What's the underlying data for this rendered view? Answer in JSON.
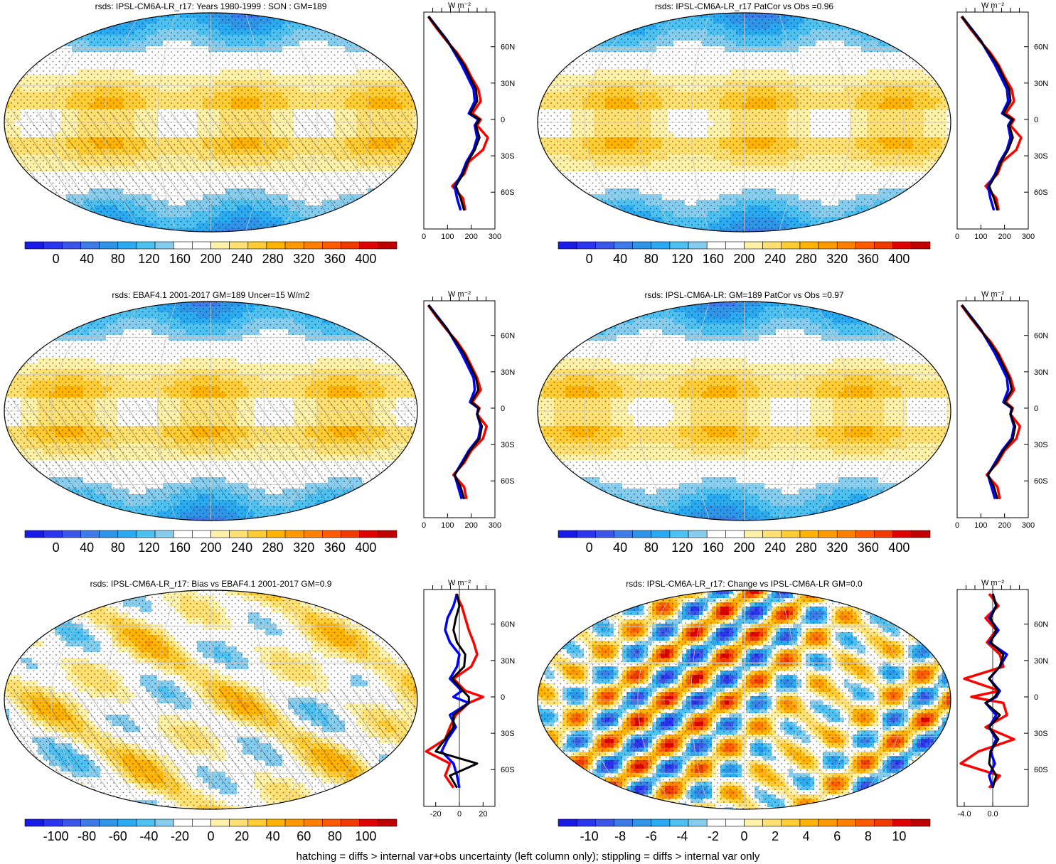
{
  "footer": "hatching = diffs > internal var+obs uncertainty (left column only); stippling = diffs > internal var only",
  "profile_unit": "W m⁻²",
  "lat_labels": [
    "60N",
    "30N",
    "0",
    "30S",
    "60S"
  ],
  "palettes": {
    "absolute": [
      "#1a1ae6",
      "#2b35f0",
      "#3a55e8",
      "#3c7be8",
      "#2f95e8",
      "#2aaaf0",
      "#4dc2f2",
      "#85cdee",
      "#ffffff",
      "#ffffff",
      "#fff2a8",
      "#ffe070",
      "#ffcc33",
      "#ffb300",
      "#ff9900",
      "#ff7f00",
      "#ff5a00",
      "#f03a00",
      "#e00000",
      "#c00000"
    ],
    "diverging": [
      "#1a1ae6",
      "#2b35f0",
      "#3a55e8",
      "#3c7be8",
      "#2f95e8",
      "#2aaaf0",
      "#4dc2f2",
      "#85cdee",
      "#ffffff",
      "#ffffff",
      "#fff2a8",
      "#ffe070",
      "#ffcc33",
      "#ffb300",
      "#ff9900",
      "#ff7f00",
      "#ff5a00",
      "#f03a00",
      "#e00000",
      "#c00000"
    ]
  },
  "colors": {
    "model_line": "#0000ff",
    "obs_line": "#ff0000",
    "ref_line": "#000000"
  },
  "chart_data": [
    {
      "type": "heatmap",
      "title": "rsds: IPSL-CM6A-LR_r17: Years 1980-1999 : SON : GM=189",
      "colorbar_labels": [
        "0",
        "40",
        "80",
        "120",
        "160",
        "200",
        "240",
        "280",
        "320",
        "360",
        "400"
      ],
      "profile": {
        "x_ticks": [
          "0",
          "100",
          "200",
          "300"
        ],
        "xlim": [
          0,
          300
        ],
        "lat": [
          85,
          75,
          65,
          55,
          45,
          35,
          25,
          15,
          5,
          0,
          -5,
          -15,
          -25,
          -35,
          -45,
          -55,
          -65,
          -75
        ],
        "model": [
          20,
          60,
          100,
          130,
          160,
          185,
          210,
          215,
          190,
          230,
          215,
          225,
          210,
          180,
          160,
          130,
          140,
          155
        ],
        "obs": [
          18,
          55,
          95,
          140,
          175,
          200,
          230,
          240,
          205,
          240,
          225,
          270,
          250,
          190,
          170,
          120,
          165,
          175
        ],
        "ref": [
          20,
          58,
          98,
          135,
          170,
          195,
          220,
          225,
          195,
          235,
          220,
          235,
          215,
          185,
          165,
          135,
          155,
          170
        ]
      },
      "hatching": true,
      "stippling": true
    },
    {
      "type": "heatmap",
      "title": "rsds: IPSL-CM6A-LR_r17 PatCor vs Obs =0.96",
      "colorbar_labels": [
        "0",
        "40",
        "80",
        "120",
        "160",
        "200",
        "240",
        "280",
        "320",
        "360",
        "400"
      ],
      "profile": {
        "x_ticks": [
          "0",
          "100",
          "200",
          "300"
        ],
        "xlim": [
          0,
          300
        ],
        "lat": [
          85,
          75,
          65,
          55,
          45,
          35,
          25,
          15,
          5,
          0,
          -5,
          -15,
          -25,
          -35,
          -45,
          -55,
          -65,
          -75
        ],
        "model": [
          20,
          60,
          100,
          130,
          160,
          185,
          210,
          215,
          190,
          230,
          215,
          225,
          210,
          180,
          160,
          130,
          140,
          155
        ],
        "obs": [
          18,
          55,
          95,
          140,
          175,
          200,
          230,
          240,
          205,
          240,
          225,
          270,
          250,
          190,
          170,
          120,
          165,
          175
        ],
        "ref": [
          20,
          58,
          98,
          135,
          170,
          195,
          220,
          225,
          195,
          235,
          220,
          235,
          215,
          185,
          165,
          135,
          155,
          170
        ]
      },
      "hatching": false,
      "stippling": true
    },
    {
      "type": "heatmap",
      "title": "rsds: EBAF4.1 2001-2017 GM=189 Uncer=15 W/m2",
      "colorbar_labels": [
        "0",
        "40",
        "80",
        "120",
        "160",
        "200",
        "240",
        "280",
        "320",
        "360",
        "400"
      ],
      "profile": {
        "x_ticks": [
          "0",
          "100",
          "200",
          "300"
        ],
        "xlim": [
          0,
          300
        ],
        "lat": [
          85,
          75,
          65,
          55,
          45,
          35,
          25,
          15,
          5,
          0,
          -5,
          -15,
          -25,
          -35,
          -45,
          -55,
          -65,
          -75
        ],
        "model": [
          20,
          60,
          100,
          130,
          160,
          185,
          210,
          215,
          195,
          230,
          225,
          240,
          230,
          190,
          160,
          130,
          145,
          160
        ],
        "obs": [
          18,
          55,
          95,
          140,
          175,
          200,
          225,
          240,
          205,
          235,
          225,
          265,
          250,
          200,
          170,
          125,
          170,
          180
        ],
        "ref": [
          20,
          58,
          98,
          135,
          170,
          195,
          220,
          230,
          200,
          232,
          225,
          245,
          235,
          195,
          165,
          130,
          155,
          170
        ]
      },
      "hatching": true,
      "stippling": true
    },
    {
      "type": "heatmap",
      "title": "rsds: IPSL-CM6A-LR: GM=189 PatCor vs Obs =0.97",
      "colorbar_labels": [
        "0",
        "40",
        "80",
        "120",
        "160",
        "200",
        "240",
        "280",
        "320",
        "360",
        "400"
      ],
      "profile": {
        "x_ticks": [
          "0",
          "100",
          "200",
          "300"
        ],
        "xlim": [
          0,
          300
        ],
        "lat": [
          85,
          75,
          65,
          55,
          45,
          35,
          25,
          15,
          5,
          0,
          -5,
          -15,
          -25,
          -35,
          -45,
          -55,
          -65,
          -75
        ],
        "model": [
          20,
          60,
          100,
          130,
          160,
          185,
          210,
          215,
          195,
          230,
          225,
          240,
          230,
          190,
          160,
          130,
          145,
          160
        ],
        "obs": [
          18,
          55,
          95,
          140,
          175,
          200,
          225,
          240,
          205,
          235,
          225,
          265,
          250,
          200,
          170,
          125,
          170,
          180
        ],
        "ref": [
          20,
          58,
          98,
          135,
          170,
          195,
          220,
          230,
          200,
          232,
          225,
          245,
          235,
          195,
          165,
          130,
          155,
          170
        ]
      },
      "hatching": false,
      "stippling": true
    },
    {
      "type": "heatmap",
      "title": "rsds: IPSL-CM6A-LR_r17: Bias vs EBAF4.1 2001-2017  GM=0.9",
      "colorbar_labels": [
        "-100",
        "-80",
        "-60",
        "-40",
        "-20",
        "0",
        "20",
        "40",
        "60",
        "80",
        "100"
      ],
      "profile": {
        "x_ticks": [
          "-20",
          "0",
          "20"
        ],
        "xlim": [
          -30,
          30
        ],
        "lat": [
          85,
          75,
          65,
          55,
          45,
          35,
          25,
          15,
          5,
          0,
          -5,
          -15,
          -25,
          -35,
          -45,
          -55,
          -65,
          -75
        ],
        "model": [
          -2,
          -5,
          -10,
          -12,
          -8,
          0,
          -2,
          -8,
          2,
          -5,
          8,
          -8,
          -3,
          -10,
          -15,
          -5,
          -2,
          0
        ],
        "obs": [
          -3,
          2,
          5,
          8,
          12,
          15,
          10,
          -5,
          5,
          20,
          8,
          -3,
          -8,
          -12,
          -28,
          -8,
          -12,
          -5
        ],
        "ref": [
          -2,
          0,
          -3,
          -5,
          -2,
          5,
          4,
          -6,
          3,
          8,
          8,
          -5,
          -5,
          -12,
          -20,
          15,
          -8,
          -2
        ]
      },
      "hatching": true,
      "stippling": true
    },
    {
      "type": "heatmap",
      "title": "rsds: IPSL-CM6A-LR_r17: Change vs IPSL-CM6A-LR GM=0.0",
      "colorbar_labels": [
        "-10",
        "-8",
        "-6",
        "-4",
        "-2",
        "0",
        "2",
        "4",
        "6",
        "8",
        "10"
      ],
      "profile": {
        "x_ticks": [
          "-4.0",
          "0.0"
        ],
        "xlim": [
          -5,
          5
        ],
        "lat": [
          85,
          75,
          65,
          55,
          45,
          35,
          25,
          15,
          5,
          0,
          -5,
          -15,
          -25,
          -35,
          -45,
          -55,
          -65,
          -75
        ],
        "model": [
          0,
          0.5,
          -0.5,
          0.8,
          -0.5,
          2,
          1,
          -0.5,
          1,
          0.5,
          -1,
          0.5,
          -0.5,
          0.5,
          -0.3,
          0.3,
          -0.5,
          0
        ],
        "obs": [
          -0.5,
          0.8,
          -1,
          0.5,
          -0.8,
          1,
          1.5,
          -4,
          1,
          -3,
          1.5,
          2,
          -1,
          3,
          -2,
          -4.5,
          1,
          -0.5
        ],
        "ref": [
          0,
          0.5,
          -0.3,
          0.5,
          -0.3,
          1.5,
          1,
          -0.5,
          0.8,
          0.3,
          -1,
          1,
          -0.5,
          0.8,
          -0.3,
          -0.5,
          0.5,
          0
        ]
      },
      "hatching": false,
      "stippling": true
    }
  ]
}
